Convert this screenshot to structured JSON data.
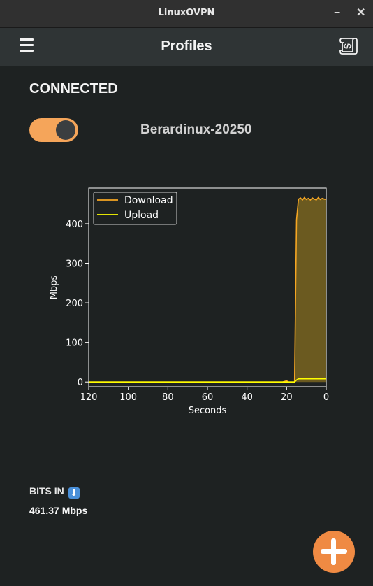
{
  "window": {
    "title": "LinuxOVPN",
    "minimize_icon": "−",
    "close_icon": "✕"
  },
  "appbar": {
    "title": "Profiles",
    "menu_icon": "hamburger-menu-icon",
    "log_icon": "code-scroll-icon"
  },
  "status": {
    "text": "CONNECTED"
  },
  "profile": {
    "name": "Berardinux-20250",
    "toggle_on": true
  },
  "colors": {
    "toggle": "#f5a55a",
    "download": "#f5a623",
    "upload": "#ffff00",
    "fab": "#ef8a43",
    "fill": "#6b5a20"
  },
  "chart_data": {
    "type": "area",
    "xlabel": "Seconds",
    "ylabel": "Mbps",
    "xlim": [
      120,
      0
    ],
    "ylim": [
      -12,
      490
    ],
    "x_ticks": [
      120,
      100,
      80,
      60,
      40,
      20,
      0
    ],
    "y_ticks": [
      0,
      100,
      200,
      300,
      400
    ],
    "legend_position": "top-left",
    "grid": false,
    "series": [
      {
        "name": "Download",
        "x": [
          120,
          22,
          20,
          19,
          16,
          15,
          14,
          13,
          12,
          11,
          10,
          9,
          8,
          7,
          6,
          5,
          4,
          3,
          2,
          1,
          0
        ],
        "values": [
          0,
          0,
          3,
          0,
          0,
          410,
          462,
          465,
          460,
          466,
          461,
          464,
          460,
          465,
          462,
          460,
          466,
          461,
          464,
          462,
          461
        ]
      },
      {
        "name": "Upload",
        "x": [
          120,
          16,
          15,
          14,
          0
        ],
        "values": [
          0,
          0,
          5,
          8,
          8
        ]
      }
    ]
  },
  "bits_in": {
    "label": "BITS IN",
    "arrow_icon": "⬇",
    "value": "461.37 Mbps"
  },
  "fab": {
    "icon": "plus-icon"
  }
}
